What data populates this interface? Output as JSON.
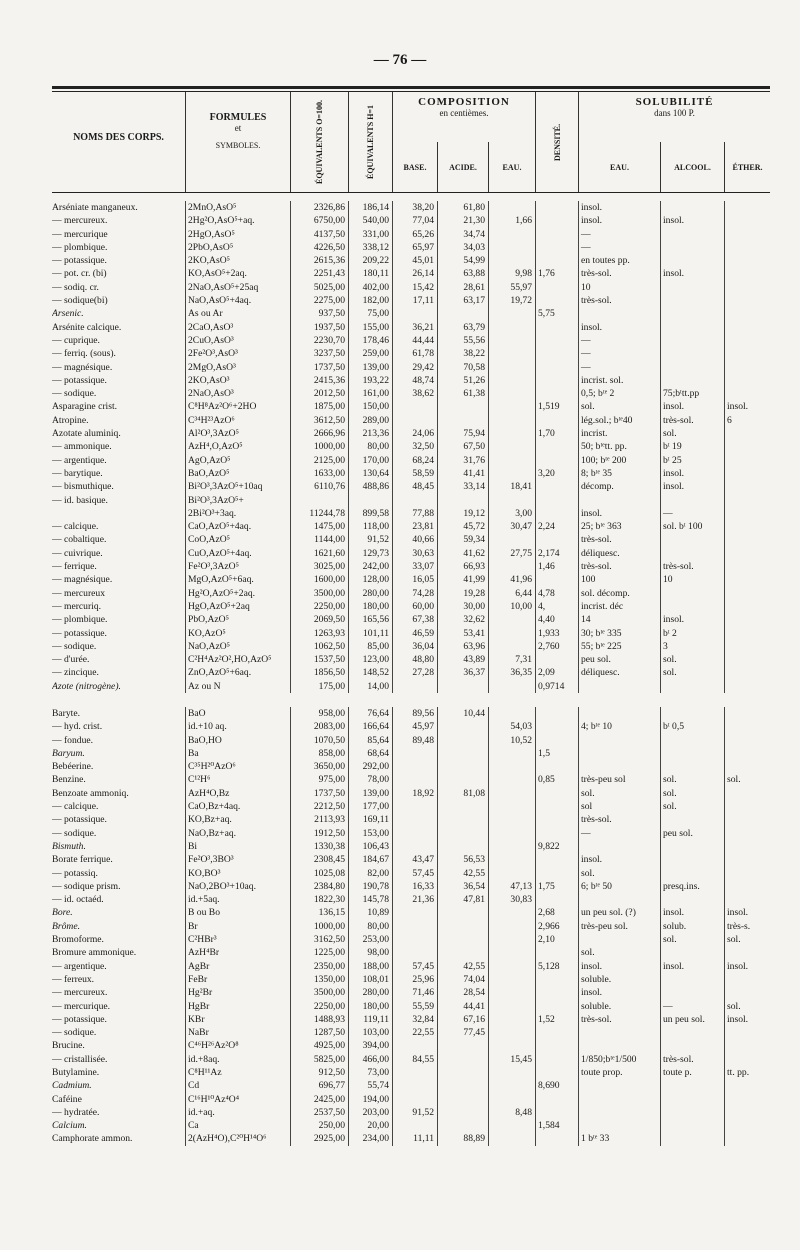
{
  "header": {
    "page_number": "— 76 —"
  },
  "table": {
    "columns": {
      "name": "NOMS DES CORPS.",
      "formulas": [
        "FORMULES",
        "et",
        "SYMBOLES."
      ],
      "eq_o": "ÉQUIVALENTS O=100.",
      "eq_h": "ÉQUIVALENTS H=1",
      "composition": {
        "title": "COMPOSITION",
        "subtitle": "en centièmes.",
        "sub": [
          "BASE.",
          "ACIDE.",
          "EAU."
        ]
      },
      "densite": "DENSITÉ.",
      "solubilite": {
        "title": "SOLUBILITÉ",
        "subtitle": "dans 100 P.",
        "sub": [
          "EAU.",
          "ALCOOL.",
          "ÉTHER."
        ]
      }
    },
    "rows": [
      [
        "Arséniate manganeux.",
        "2MnO,AsO⁵",
        "2326,86",
        "186,14",
        "38,20",
        "61,80",
        null,
        null,
        "insol.",
        null,
        null
      ],
      [
        "— mercureux.",
        "2Hg²O,AsO⁵+aq.",
        "6750,00",
        "540,00",
        "77,04",
        "21,30",
        "1,66",
        null,
        "insol.",
        "insol.",
        null
      ],
      [
        "— mercurique",
        "2HgO,AsO⁵",
        "4137,50",
        "331,00",
        "65,26",
        "34,74",
        null,
        null,
        "—",
        null,
        null
      ],
      [
        "— plombique.",
        "2PbO,AsO⁵",
        "4226,50",
        "338,12",
        "65,97",
        "34,03",
        null,
        null,
        "—",
        null,
        null
      ],
      [
        "— potassique.",
        "2KO,AsO⁵",
        "2615,36",
        "209,22",
        "45,01",
        "54,99",
        null,
        null,
        "en toutes pp.",
        null,
        null
      ],
      [
        "— pot. cr. (bi)",
        "KO,AsO⁵+2aq.",
        "2251,43",
        "180,11",
        "26,14",
        "63,88",
        "9,98",
        "1,76",
        "très-sol.",
        "insol.",
        null
      ],
      [
        "— sodiq. cr.",
        "2NaO,AsO⁵+25aq",
        "5025,00",
        "402,00",
        "15,42",
        "28,61",
        "55,97",
        null,
        "10",
        null,
        null
      ],
      [
        "— sodique(bi)",
        "NaO,AsO⁵+4aq.",
        "2275,00",
        "182,00",
        "17,11",
        "63,17",
        "19,72",
        null,
        "très-sol.",
        null,
        null
      ],
      [
        "Arsenic.",
        "As ou Ar",
        "937,50",
        "75,00",
        null,
        null,
        null,
        "5,75",
        null,
        null,
        null
      ],
      [
        "Arsénite calcique.",
        "2CaO,AsO³",
        "1937,50",
        "155,00",
        "36,21",
        "63,79",
        null,
        null,
        "insol.",
        null,
        null
      ],
      [
        "— cuprique.",
        "2CuO,AsO³",
        "2230,70",
        "178,46",
        "44,44",
        "55,56",
        null,
        null,
        "—",
        null,
        null
      ],
      [
        "— ferriq. (sous).",
        "2Fe²O³,AsO³",
        "3237,50",
        "259,00",
        "61,78",
        "38,22",
        null,
        null,
        "—",
        null,
        null
      ],
      [
        "— magnésique.",
        "2MgO,AsO³",
        "1737,50",
        "139,00",
        "29,42",
        "70,58",
        null,
        null,
        "—",
        null,
        null
      ],
      [
        "— potassique.",
        "2KO,AsO³",
        "2415,36",
        "193,22",
        "48,74",
        "51,26",
        null,
        null,
        "incrist. sol.",
        null,
        null
      ],
      [
        "— sodique.",
        "2NaO,AsO³",
        "2012,50",
        "161,00",
        "38,62",
        "61,38",
        null,
        null,
        "0,5; bᵗᵉ 2",
        "75;bᵗtt.pp",
        null
      ],
      [
        "Asparagine crist.",
        "C⁸H⁸Az²O⁶+2HO",
        "1875,00",
        "150,00",
        null,
        null,
        null,
        "1,519",
        "sol.",
        "insol.",
        "insol."
      ],
      [
        "Atropine.",
        "C³⁴H²³AzO⁶",
        "3612,50",
        "289,00",
        null,
        null,
        null,
        null,
        "lég.sol.; bᵗᵉ40",
        "très-sol.",
        "6"
      ],
      [
        "Azotate aluminiq.",
        "Al²O³,3AzO⁵",
        "2666,96",
        "213,36",
        "24,06",
        "75,94",
        null,
        "1,70",
        "incrist.",
        "sol.",
        null
      ],
      [
        "— ammonique.",
        "AzH⁴,O,AzO⁵",
        "1000,00",
        "80,00",
        "32,50",
        "67,50",
        null,
        null,
        "50; bᵗᵉtt. pp.",
        "bᵗ 19",
        null
      ],
      [
        "— argentique.",
        "AgO,AzO⁵",
        "2125,00",
        "170,00",
        "68,24",
        "31,76",
        null,
        null,
        "100; bᵗᵉ 200",
        "bᵗ 25",
        null
      ],
      [
        "— barytique.",
        "BaO,AzO⁵",
        "1633,00",
        "130,64",
        "58,59",
        "41,41",
        null,
        "3,20",
        "8; bᵗᵉ 35",
        "insol.",
        null
      ],
      [
        "— bismuthique.",
        "Bi²O³,3AzO⁵+10aq",
        "6110,76",
        "488,86",
        "48,45",
        "33,14",
        "18,41",
        null,
        "décomp.",
        "insol.",
        null
      ],
      [
        "— id. basique.",
        "Bi²O³,3AzO⁵+",
        null,
        null,
        null,
        null,
        null,
        null,
        null,
        null,
        null
      ],
      [
        null,
        "2Bi²O³+3aq.",
        "11244,78",
        "899,58",
        "77,88",
        "19,12",
        "3,00",
        null,
        "insol.",
        "—",
        null
      ],
      [
        "— calcique.",
        "CaO,AzO⁵+4aq.",
        "1475,00",
        "118,00",
        "23,81",
        "45,72",
        "30,47",
        "2,24",
        "25; bᵗᵉ 363",
        "sol. bᵗ 100",
        null
      ],
      [
        "— cobaltique.",
        "CoO,AzO⁵",
        "1144,00",
        "91,52",
        "40,66",
        "59,34",
        null,
        null,
        "très-sol.",
        null,
        null
      ],
      [
        "— cuivrique.",
        "CuO,AzO⁵+4aq.",
        "1621,60",
        "129,73",
        "30,63",
        "41,62",
        "27,75",
        "2,174",
        "déliquesc.",
        null,
        null
      ],
      [
        "— ferrique.",
        "Fe²O³,3AzO⁵",
        "3025,00",
        "242,00",
        "33,07",
        "66,93",
        null,
        "1,46",
        "très-sol.",
        "très-sol.",
        null
      ],
      [
        "— magnésique.",
        "MgO,AzO⁵+6aq.",
        "1600,00",
        "128,00",
        "16,05",
        "41,99",
        "41,96",
        null,
        "100",
        "10",
        null
      ],
      [
        "— mercureux",
        "Hg²O,AzO⁵+2aq.",
        "3500,00",
        "280,00",
        "74,28",
        "19,28",
        "6,44",
        "4,78",
        "sol. décomp.",
        null,
        null
      ],
      [
        "— mercuriq.",
        "HgO,AzO⁵+2aq",
        "2250,00",
        "180,00",
        "60,00",
        "30,00",
        "10,00",
        "4,",
        "incrist. déc",
        null,
        null
      ],
      [
        "— plombique.",
        "PbO,AzO⁵",
        "2069,50",
        "165,56",
        "67,38",
        "32,62",
        null,
        "4,40",
        "14",
        "insol.",
        null
      ],
      [
        "— potassique.",
        "KO,AzO⁵",
        "1263,93",
        "101,11",
        "46,59",
        "53,41",
        null,
        "1,933",
        "30; bᵗᵉ 335",
        "bᵗ 2",
        null
      ],
      [
        "— sodique.",
        "NaO,AzO⁵",
        "1062,50",
        "85,00",
        "36,04",
        "63,96",
        null,
        "2,760",
        "55; bᵗᵉ 225",
        "3",
        null
      ],
      [
        "— d'urée.",
        "C²H⁴Az²O²,HO,AzO⁵",
        "1537,50",
        "123,00",
        "48,80",
        "43,89",
        "7,31",
        null,
        "peu sol.",
        "sol.",
        null
      ],
      [
        "— zincique.",
        "ZnO,AzO⁵+6aq.",
        "1856,50",
        "148,52",
        "27,28",
        "36,37",
        "36,35",
        "2,09",
        "déliquesc.",
        "sol.",
        null
      ],
      [
        "Azote (nitrogène).",
        "Az ou N",
        "175,00",
        "14,00",
        null,
        null,
        null,
        "0,9714",
        null,
        null,
        null
      ],
      [
        "Baryte.",
        "BaO",
        "958,00",
        "76,64",
        "89,56",
        "10,44",
        null,
        null,
        null,
        null,
        null
      ],
      [
        "— hyd. crist.",
        "id.+10 aq.",
        "2083,00",
        "166,64",
        "45,97",
        null,
        "54,03",
        null,
        "4; bᵗᵉ 10",
        "bᵗ 0,5",
        null
      ],
      [
        "— fondue.",
        "BaO,HO",
        "1070,50",
        "85,64",
        "89,48",
        null,
        "10,52",
        null,
        null,
        null,
        null
      ],
      [
        "Baryum.",
        "Ba",
        "858,00",
        "68,64",
        null,
        null,
        null,
        "1,5",
        null,
        null,
        null
      ],
      [
        "Bebéerine.",
        "C³⁵H²⁰AzO⁶",
        "3650,00",
        "292,00",
        null,
        null,
        null,
        null,
        null,
        null,
        null
      ],
      [
        "Benzine.",
        "C¹²H⁶",
        "975,00",
        "78,00",
        null,
        null,
        null,
        "0,85",
        "très-peu sol",
        "sol.",
        "sol."
      ],
      [
        "Benzoate ammoniq.",
        "AzH⁴O,Bz",
        "1737,50",
        "139,00",
        "18,92",
        "81,08",
        null,
        null,
        "sol.",
        "sol.",
        null
      ],
      [
        "— calcique.",
        "CaO,Bz+4aq.",
        "2212,50",
        "177,00",
        null,
        null,
        null,
        null,
        "sol",
        "sol.",
        null
      ],
      [
        "— potassique.",
        "KO,Bz+aq.",
        "2113,93",
        "169,11",
        null,
        null,
        null,
        null,
        "très-sol.",
        null,
        null
      ],
      [
        "— sodique.",
        "NaO,Bz+aq.",
        "1912,50",
        "153,00",
        null,
        null,
        null,
        null,
        "—",
        "peu sol.",
        null
      ],
      [
        "Bismuth.",
        "Bi",
        "1330,38",
        "106,43",
        null,
        null,
        null,
        "9,822",
        null,
        null,
        null
      ],
      [
        "Borate ferrique.",
        "Fe²O³,3BO³",
        "2308,45",
        "184,67",
        "43,47",
        "56,53",
        null,
        null,
        "insol.",
        null,
        null
      ],
      [
        "— potassiq.",
        "KO,BO³",
        "1025,08",
        "82,00",
        "57,45",
        "42,55",
        null,
        null,
        "sol.",
        null,
        null
      ],
      [
        "— sodique prism.",
        "NaO,2BO³+10aq.",
        "2384,80",
        "190,78",
        "16,33",
        "36,54",
        "47,13",
        "1,75",
        "6; bᵗᵉ 50",
        "presq.ins.",
        null
      ],
      [
        "— id. octaéd.",
        "id.+5aq.",
        "1822,30",
        "145,78",
        "21,36",
        "47,81",
        "30,83",
        null,
        null,
        null,
        null
      ],
      [
        "Bore.",
        "B ou Bo",
        "136,15",
        "10,89",
        null,
        null,
        null,
        "2,68",
        "un peu sol. (?)",
        "insol.",
        "insol."
      ],
      [
        "Brôme.",
        "Br",
        "1000,00",
        "80,00",
        null,
        null,
        null,
        "2,966",
        "très-peu sol.",
        "solub.",
        "très-s."
      ],
      [
        "Bromoforme.",
        "C²HBr³",
        "3162,50",
        "253,00",
        null,
        null,
        null,
        "2,10",
        null,
        "sol.",
        "sol."
      ],
      [
        "Bromure ammonique.",
        "AzH⁴Br",
        "1225,00",
        "98,00",
        null,
        null,
        null,
        null,
        "sol.",
        null,
        null
      ],
      [
        "— argentique.",
        "AgBr",
        "2350,00",
        "188,00",
        "57,45",
        "42,55",
        null,
        "5,128",
        "insol.",
        "insol.",
        "insol."
      ],
      [
        "— ferreux.",
        "FeBr",
        "1350,00",
        "108,01",
        "25,96",
        "74,04",
        null,
        null,
        "soluble.",
        null,
        null
      ],
      [
        "— mercureux.",
        "Hg²Br",
        "3500,00",
        "280,00",
        "71,46",
        "28,54",
        null,
        null,
        "insol.",
        null,
        null
      ],
      [
        "— mercurique.",
        "HgBr",
        "2250,00",
        "180,00",
        "55,59",
        "44,41",
        null,
        null,
        "soluble.",
        "—",
        "sol."
      ],
      [
        "— potassique.",
        "KBr",
        "1488,93",
        "119,11",
        "32,84",
        "67,16",
        null,
        "1,52",
        "très-sol.",
        "un peu sol.",
        "insol."
      ],
      [
        "— sodique.",
        "NaBr",
        "1287,50",
        "103,00",
        "22,55",
        "77,45",
        null,
        null,
        null,
        null,
        null
      ],
      [
        "Brucine.",
        "C⁴⁶H²⁶Az²O⁸",
        "4925,00",
        "394,00",
        null,
        null,
        null,
        null,
        null,
        null,
        null
      ],
      [
        "— cristallisée.",
        "id.+8aq.",
        "5825,00",
        "466,00",
        "84,55",
        null,
        "15,45",
        null,
        "1/850;bᵗᵉ1/500",
        "très-sol.",
        null
      ],
      [
        "Butylamine.",
        "C⁸H¹¹Az",
        "912,50",
        "73,00",
        null,
        null,
        null,
        null,
        "toute prop.",
        "toute p.",
        "tt. pp."
      ],
      [
        "Cadmium.",
        "Cd",
        "696,77",
        "55,74",
        null,
        null,
        null,
        "8,690",
        null,
        null,
        null
      ],
      [
        "Caféine",
        "C¹⁶H¹⁰Az⁴O⁴",
        "2425,00",
        "194,00",
        null,
        null,
        null,
        null,
        null,
        null,
        null
      ],
      [
        "— hydratée.",
        "id.+aq.",
        "2537,50",
        "203,00",
        "91,52",
        null,
        "8,48",
        null,
        null,
        null,
        null
      ],
      [
        "Calcium.",
        "Ca",
        "250,00",
        "20,00",
        null,
        null,
        null,
        "1,584",
        null,
        null,
        null
      ],
      [
        "Camphorate ammon.",
        "2(AzH⁴O),C²⁰H¹⁴O⁶",
        "2925,00",
        "234,00",
        "11,11",
        "88,89",
        null,
        null,
        "1 bᵗᵉ 33",
        null,
        null
      ]
    ]
  }
}
